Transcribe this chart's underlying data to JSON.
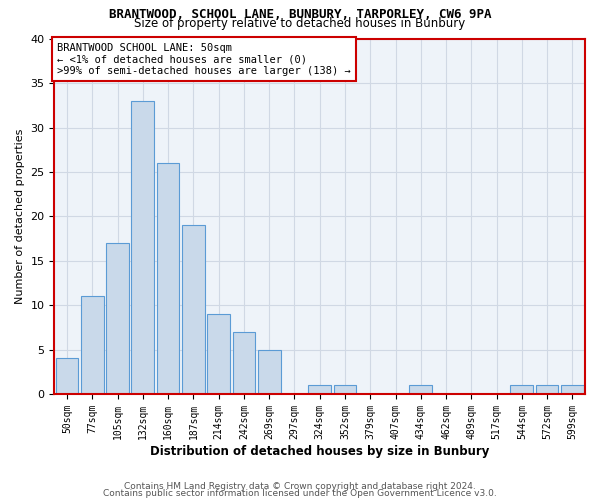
{
  "title1": "BRANTWOOD, SCHOOL LANE, BUNBURY, TARPORLEY, CW6 9PA",
  "title2": "Size of property relative to detached houses in Bunbury",
  "xlabel": "Distribution of detached houses by size in Bunbury",
  "ylabel": "Number of detached properties",
  "annotation_line1": "BRANTWOOD SCHOOL LANE: 50sqm",
  "annotation_line2": "← <1% of detached houses are smaller (0)",
  "annotation_line3": ">99% of semi-detached houses are larger (138) →",
  "bar_labels": [
    "50sqm",
    "77sqm",
    "105sqm",
    "132sqm",
    "160sqm",
    "187sqm",
    "214sqm",
    "242sqm",
    "269sqm",
    "297sqm",
    "324sqm",
    "352sqm",
    "379sqm",
    "407sqm",
    "434sqm",
    "462sqm",
    "489sqm",
    "517sqm",
    "544sqm",
    "572sqm",
    "599sqm"
  ],
  "bar_values": [
    4,
    11,
    17,
    33,
    26,
    19,
    9,
    7,
    5,
    0,
    1,
    1,
    0,
    0,
    1,
    0,
    0,
    0,
    1,
    1,
    1
  ],
  "bar_face_color": "#c9d9ea",
  "bar_edge_color": "#5b9bd5",
  "grid_color": "#d0d8e4",
  "background_color": "#eef3f9",
  "annotation_box_edge_color": "#cc0000",
  "annotation_box_face_color": "#ffffff",
  "plot_border_color": "#cc0000",
  "ylim": [
    0,
    40
  ],
  "yticks": [
    0,
    5,
    10,
    15,
    20,
    25,
    30,
    35,
    40
  ],
  "footer1": "Contains HM Land Registry data © Crown copyright and database right 2024.",
  "footer2": "Contains public sector information licensed under the Open Government Licence v3.0."
}
